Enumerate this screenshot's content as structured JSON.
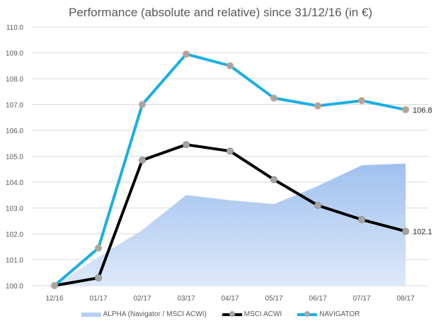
{
  "chart_data": {
    "type": "line",
    "title": "Performance (absolute and relative) since 31/12/16 (in €)",
    "categories": [
      "12/16",
      "01/17",
      "02/17",
      "03/17",
      "04/17",
      "05/17",
      "06/17",
      "07/17",
      "08/17"
    ],
    "ylim": [
      100,
      110
    ],
    "yticks": [
      "100.0",
      "101.0",
      "102.0",
      "103.0",
      "104.0",
      "105.0",
      "106.0",
      "107.0",
      "108.0",
      "109.0",
      "110.0"
    ],
    "grid": true,
    "legend_position": "bottom",
    "series": [
      {
        "name": "ALPHA (Navigator / MSCI ACWI)",
        "type": "area",
        "color": "#a4c4f0",
        "values": [
          100.0,
          101.1,
          102.15,
          103.5,
          103.3,
          103.15,
          103.85,
          104.65,
          104.72
        ]
      },
      {
        "name": "MSCI ACWI",
        "type": "line",
        "color": "#000000",
        "values": [
          100.0,
          100.3,
          104.85,
          105.45,
          105.2,
          104.1,
          103.1,
          102.55,
          102.1
        ]
      },
      {
        "name": "NAVIGATOR",
        "type": "line",
        "color": "#1aaee5",
        "values": [
          100.0,
          101.45,
          107.0,
          108.95,
          108.5,
          107.25,
          106.95,
          107.15,
          106.8
        ]
      }
    ],
    "end_labels": {
      "msci": "102.1",
      "navigator": "106.8"
    }
  }
}
